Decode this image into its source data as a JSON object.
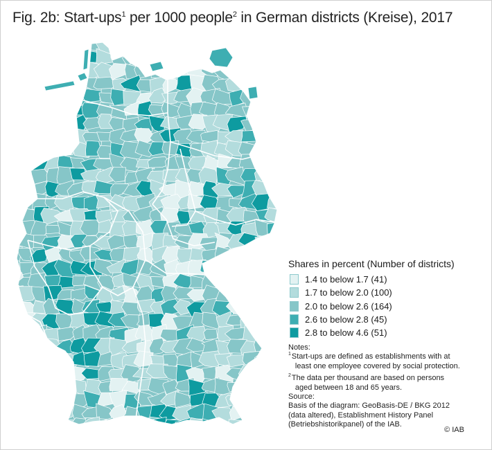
{
  "title": {
    "main_1": "Fig. 2b: Start-ups",
    "sup_1": "1",
    "main_2": " per 1000 people",
    "sup_2": "2",
    "main_3": " in German districts (Kreise), 2017"
  },
  "colors": {
    "class_1": "#e3f2f2",
    "class_2": "#b3dcdd",
    "class_3": "#86c6c8",
    "class_4": "#3eaeb2",
    "class_5": "#0e9ba0",
    "border": "#ffffff",
    "frame": "#cfcfcf"
  },
  "legend": {
    "title": "Shares in percent (Number of districts)",
    "items": [
      {
        "label": "1.4 to below 1.7 (41)",
        "color": "#e3f2f2",
        "lower": 1.4,
        "upper": 1.7,
        "count": 41
      },
      {
        "label": "1.7 to below 2.0 (100)",
        "color": "#b3dcdd",
        "lower": 1.7,
        "upper": 2.0,
        "count": 100
      },
      {
        "label": "2.0 to below 2.6 (164)",
        "color": "#86c6c8",
        "lower": 2.0,
        "upper": 2.6,
        "count": 164
      },
      {
        "label": "2.6 to below 2.8 (45)",
        "color": "#3eaeb2",
        "lower": 2.6,
        "upper": 2.8,
        "count": 45
      },
      {
        "label": "2.8 to below 4.6 (51)",
        "color": "#0e9ba0",
        "lower": 2.8,
        "upper": 4.6,
        "count": 51
      }
    ]
  },
  "notes": {
    "heading": "Notes:",
    "note_1_sup": "1",
    "note_1_line_1": "Start-ups are defined as establishments with at",
    "note_1_line_2": "least one employee covered by social protection.",
    "note_2_sup": "2",
    "note_2_line_1": "The data per thousand are based on persons",
    "note_2_line_2": "aged between 18 and 65 years.",
    "source_heading": "Source:",
    "source_line_1": "Basis of the diagram: GeoBasis-DE / BKG 2012",
    "source_line_2": "(data altered), Establishment History Panel",
    "source_line_3": "(Betriebshistorikpanel) of the IAB."
  },
  "copyright": "© IAB"
}
